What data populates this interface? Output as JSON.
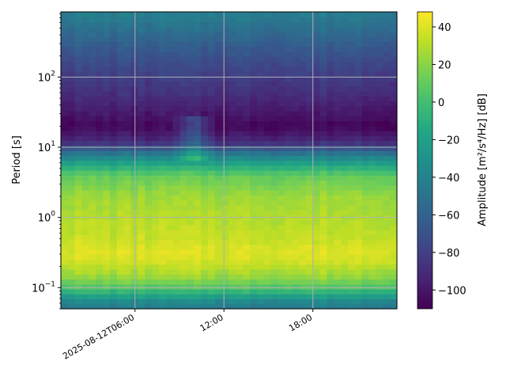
{
  "chart_data": {
    "type": "heatmap",
    "title": "",
    "xlabel": "",
    "ylabel": "Period [s]",
    "yscale": "log",
    "ylim": [
      0.05,
      850
    ],
    "x_axis": {
      "type": "datetime",
      "range": [
        "2025-08-12T01:00",
        "2025-08-12T23:40"
      ],
      "ticks": [
        {
          "value": "2025-08-12T06:00",
          "label": "2025-08-12T06:00"
        },
        {
          "value": "2025-08-12T12:00",
          "label": "12:00"
        },
        {
          "value": "2025-08-12T18:00",
          "label": "18:00"
        }
      ]
    },
    "y_ticks": [
      {
        "value": 0.1,
        "base": "10",
        "exp": "−1"
      },
      {
        "value": 1,
        "base": "10",
        "exp": "0"
      },
      {
        "value": 10,
        "base": "10",
        "exp": "1"
      },
      {
        "value": 100,
        "base": "10",
        "exp": "2"
      }
    ],
    "grid": true,
    "colorbar": {
      "label": "Amplitude [m²/s⁴/Hz] [dB]",
      "colormap": "viridis",
      "range": [
        -110,
        48
      ],
      "ticks": [
        {
          "value": 40,
          "label": "40"
        },
        {
          "value": 20,
          "label": "20"
        },
        {
          "value": 0,
          "label": "0"
        },
        {
          "value": -20,
          "label": "−20"
        },
        {
          "value": -40,
          "label": "−40"
        },
        {
          "value": -60,
          "label": "−60"
        },
        {
          "value": -80,
          "label": "−80"
        },
        {
          "value": -100,
          "label": "−100"
        }
      ]
    },
    "time_columns": 48,
    "period_profile": [
      {
        "period": 0.05,
        "amplitude": -45
      },
      {
        "period": 0.065,
        "amplitude": -35
      },
      {
        "period": 0.08,
        "amplitude": -15
      },
      {
        "period": 0.1,
        "amplitude": 5
      },
      {
        "period": 0.15,
        "amplitude": 25
      },
      {
        "period": 0.25,
        "amplitude": 38
      },
      {
        "period": 0.35,
        "amplitude": 40
      },
      {
        "period": 0.5,
        "amplitude": 35
      },
      {
        "period": 1,
        "amplitude": 30
      },
      {
        "period": 2,
        "amplitude": 25
      },
      {
        "period": 4,
        "amplitude": 10
      },
      {
        "period": 6,
        "amplitude": -20
      },
      {
        "period": 8,
        "amplitude": -45
      },
      {
        "period": 12,
        "amplitude": -90
      },
      {
        "period": 20,
        "amplitude": -107
      },
      {
        "period": 30,
        "amplitude": -100
      },
      {
        "period": 60,
        "amplitude": -88
      },
      {
        "period": 150,
        "amplitude": -75
      },
      {
        "period": 300,
        "amplitude": -62
      },
      {
        "period": 600,
        "amplitude": -48
      },
      {
        "period": 850,
        "amplitude": -42
      }
    ],
    "anomalies": [
      {
        "start": "2025-08-12T08:30",
        "end": "2025-08-12T11:30",
        "period_min": 7,
        "period_max": 30,
        "amplitude_boost": 30
      }
    ]
  }
}
